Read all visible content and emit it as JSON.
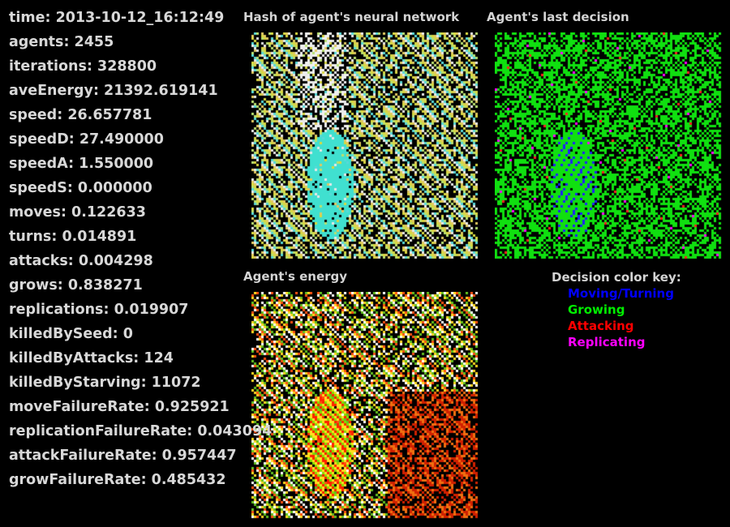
{
  "stats": [
    {
      "label": "time",
      "value": "2013-10-12_16:12:49"
    },
    {
      "label": "agents",
      "value": "2455"
    },
    {
      "label": "iterations",
      "value": "328800"
    },
    {
      "label": "aveEnergy",
      "value": "21392.619141"
    },
    {
      "label": "speed",
      "value": "26.657781"
    },
    {
      "label": "speedD",
      "value": "27.490000"
    },
    {
      "label": "speedA",
      "value": "1.550000"
    },
    {
      "label": "speedS",
      "value": "0.000000"
    },
    {
      "label": "moves",
      "value": "0.122633"
    },
    {
      "label": "turns",
      "value": "0.014891"
    },
    {
      "label": "attacks",
      "value": "0.004298"
    },
    {
      "label": "grows",
      "value": "0.838271"
    },
    {
      "label": "replications",
      "value": "0.019907"
    },
    {
      "label": "killedBySeed",
      "value": "0"
    },
    {
      "label": "killedByAttacks",
      "value": "124"
    },
    {
      "label": "killedByStarving",
      "value": "11072"
    },
    {
      "label": "moveFailureRate",
      "value": "0.925921"
    },
    {
      "label": "replicationFailureRate",
      "value": "0.043094"
    },
    {
      "label": "attackFailureRate",
      "value": "0.957447"
    },
    {
      "label": "growFailureRate",
      "value": "0.485432"
    }
  ],
  "panels": {
    "hash": {
      "title": "Hash of agent's neural network"
    },
    "decision": {
      "title": "Agent's last decision"
    },
    "energy": {
      "title": "Agent's energy"
    }
  },
  "decision_key": {
    "title": "Decision color key:",
    "items": [
      {
        "label": "Moving/Turning",
        "color": "#0000ff"
      },
      {
        "label": "Growing",
        "color": "#00ee00"
      },
      {
        "label": "Attacking",
        "color": "#ff0000"
      },
      {
        "label": "Replicating",
        "color": "#ff00ff"
      }
    ]
  },
  "colors": {
    "background": "#000000",
    "text": "#d8d8d8"
  }
}
